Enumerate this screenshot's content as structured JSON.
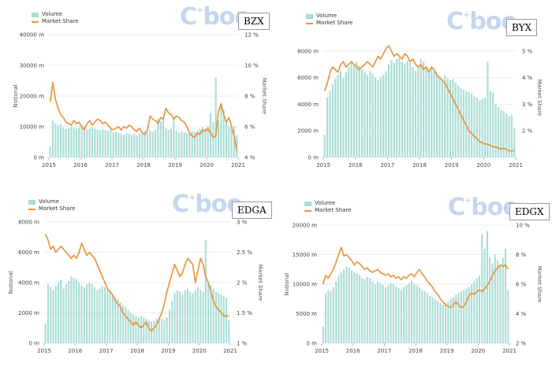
{
  "legend": {
    "volume": "Volume",
    "share": "Market Share"
  },
  "brand": {
    "logo_c": "C",
    "logo_rest": "boe",
    "logo_sup": "+"
  },
  "colors": {
    "bar": "#a8dcd5",
    "line": "#e8963f",
    "grid": "#e6e6e6",
    "logo": "#c5d6ef"
  },
  "chart_data": [
    {
      "type": "bar",
      "title": "BZX",
      "ylabel": "Notional",
      "y2label": "Market Share",
      "xlim": [
        2015,
        2021
      ],
      "ylim": [
        0,
        40000
      ],
      "y2lim": [
        4,
        12
      ],
      "yticks": [
        0,
        10000,
        20000,
        30000,
        40000
      ],
      "ytick_labels": [
        "0 m",
        "10000 m",
        "20000 m",
        "30000 m",
        "40000 m"
      ],
      "y2ticks": [
        4,
        6,
        8,
        10,
        12
      ],
      "y2tick_labels": [
        "4 %",
        "6 %",
        "8 %",
        "10 %",
        "12 %"
      ],
      "xticks": [
        2015,
        2016,
        2017,
        2018,
        2019,
        2020,
        2021
      ],
      "series": [
        {
          "name": "Volume",
          "kind": "bar",
          "axis": "left",
          "values": [
            3500,
            12000,
            11000,
            10500,
            10800,
            9800,
            9200,
            9500,
            10000,
            9600,
            9400,
            9800,
            10500,
            10200,
            9000,
            9300,
            9700,
            9400,
            9100,
            8800,
            9200,
            9000,
            8700,
            9400,
            8200,
            8400,
            8000,
            7800,
            7500,
            7900,
            7700,
            7400,
            7600,
            7300,
            7800,
            8100,
            8600,
            8200,
            8900,
            8400,
            9000,
            12500,
            11800,
            13000,
            9500,
            8900,
            9300,
            12800,
            8600,
            8000,
            8400,
            8200,
            7900,
            8100,
            8500,
            8300,
            8700,
            9200,
            9900,
            9500,
            10200,
            14500,
            11500,
            26000,
            12000,
            17000,
            15500,
            11500,
            10200,
            9800,
            10300,
            7200
          ]
        },
        {
          "name": "Market Share",
          "kind": "line",
          "axis": "right",
          "values": [
            7.6,
            8.9,
            7.8,
            7.2,
            6.8,
            6.6,
            6.3,
            6.2,
            6.1,
            6.4,
            6.2,
            6.3,
            6.0,
            5.8,
            6.2,
            6.4,
            6.1,
            6.3,
            6.5,
            6.4,
            6.2,
            6.3,
            6.1,
            5.9,
            5.8,
            5.9,
            6.0,
            5.8,
            6.0,
            5.9,
            6.1,
            6.0,
            5.8,
            5.7,
            5.9,
            5.6,
            5.5,
            5.8,
            6.7,
            6.5,
            6.4,
            6.2,
            6.6,
            6.5,
            7.2,
            6.9,
            6.8,
            6.5,
            6.7,
            6.6,
            6.4,
            6.3,
            6.0,
            5.6,
            5.4,
            5.3,
            5.6,
            5.5,
            5.8,
            5.7,
            5.9,
            5.6,
            5.3,
            5.4,
            7.0,
            7.5,
            6.8,
            6.3,
            6.6,
            6.0,
            5.4,
            4.4
          ]
        }
      ]
    },
    {
      "type": "bar",
      "title": "BYX",
      "ylabel": "",
      "y2label": "Market Share",
      "xlim": [
        2015,
        2021
      ],
      "ylim": [
        0,
        9000
      ],
      "y2lim": [
        1,
        5.5
      ],
      "yticks": [
        0,
        2000,
        4000,
        6000,
        8000
      ],
      "ytick_labels": [
        "0 m",
        "2000 m",
        "4000 m",
        "6000 m",
        "8000 m"
      ],
      "y2ticks": [
        2,
        3,
        4,
        5
      ],
      "y2tick_labels": [
        "2 %",
        "3 %",
        "4 %",
        "5 %"
      ],
      "xticks": [
        2015,
        2016,
        2017,
        2018,
        2019,
        2020,
        2021
      ],
      "series": [
        {
          "name": "Volume",
          "kind": "bar",
          "axis": "left",
          "values": [
            1700,
            4500,
            5000,
            5500,
            5900,
            6200,
            6500,
            6000,
            6400,
            6800,
            7100,
            7000,
            7200,
            6900,
            6600,
            6400,
            6200,
            6500,
            6300,
            6000,
            5800,
            6000,
            6200,
            6500,
            7000,
            7300,
            7100,
            7400,
            7500,
            7200,
            7000,
            7300,
            7100,
            6800,
            6500,
            6900,
            7400,
            7200,
            6900,
            6600,
            6800,
            6500,
            6300,
            6100,
            5900,
            6200,
            6000,
            5800,
            5900,
            5600,
            5400,
            5200,
            5100,
            5000,
            4900,
            4800,
            4600,
            4500,
            4300,
            4400,
            4500,
            7200,
            5000,
            4900,
            4000,
            3800,
            3600,
            3500,
            3300,
            3100,
            3200,
            2200
          ]
        },
        {
          "name": "Market Share",
          "kind": "line",
          "axis": "right",
          "values": [
            3.5,
            3.8,
            4.2,
            4.4,
            4.3,
            4.2,
            4.5,
            4.6,
            4.4,
            4.5,
            4.6,
            4.5,
            4.4,
            4.3,
            4.4,
            4.5,
            4.6,
            4.5,
            4.4,
            4.6,
            4.8,
            4.7,
            4.9,
            5.1,
            5.2,
            5.0,
            4.8,
            4.9,
            4.8,
            4.7,
            4.9,
            4.8,
            4.6,
            4.7,
            4.5,
            4.4,
            4.5,
            4.3,
            4.4,
            4.2,
            4.4,
            4.3,
            4.1,
            4.0,
            3.9,
            3.8,
            3.6,
            3.4,
            3.2,
            3.0,
            2.8,
            2.6,
            2.4,
            2.2,
            2.0,
            1.9,
            1.8,
            1.7,
            1.6,
            1.55,
            1.5,
            1.5,
            1.45,
            1.4,
            1.4,
            1.35,
            1.3,
            1.35,
            1.3,
            1.25,
            1.25,
            1.25
          ]
        }
      ]
    },
    {
      "type": "bar",
      "title": "EDGA",
      "ylabel": "Notional",
      "y2label": "Market Share",
      "xlim": [
        2015,
        2021
      ],
      "ylim": [
        0,
        8000
      ],
      "y2lim": [
        1,
        3
      ],
      "yticks": [
        0,
        2000,
        4000,
        6000,
        8000
      ],
      "ytick_labels": [
        "0 m",
        "2000 m",
        "4000 m",
        "6000 m",
        "8000 m"
      ],
      "y2ticks": [
        1,
        1.5,
        2,
        2.5,
        3
      ],
      "y2tick_labels": [
        "1 %",
        "1.5 %",
        "2 %",
        "2.5 %",
        "3 %"
      ],
      "xticks": [
        2015,
        2016,
        2017,
        2018,
        2019,
        2020,
        2021
      ],
      "series": [
        {
          "name": "Volume",
          "kind": "bar",
          "axis": "left",
          "values": [
            1300,
            3900,
            3700,
            3500,
            3800,
            4000,
            4200,
            3600,
            3900,
            4100,
            4400,
            4300,
            4200,
            4000,
            3800,
            3700,
            3900,
            4000,
            3900,
            3700,
            3500,
            3600,
            3800,
            3700,
            3500,
            3400,
            3200,
            3000,
            2900,
            2700,
            2500,
            2400,
            2200,
            2000,
            1900,
            1800,
            1700,
            1800,
            1700,
            1600,
            1500,
            1400,
            1500,
            1600,
            1700,
            1600,
            1500,
            1700,
            2200,
            2800,
            3300,
            3500,
            3400,
            3200,
            3500,
            3600,
            3400,
            3300,
            3500,
            3700,
            3500,
            3400,
            6800,
            4000,
            3800,
            3600,
            3400,
            3300,
            3200,
            3100,
            3000,
            1500
          ]
        },
        {
          "name": "Market Share",
          "kind": "line",
          "axis": "right",
          "values": [
            2.8,
            2.7,
            2.55,
            2.6,
            2.5,
            2.55,
            2.6,
            2.55,
            2.5,
            2.45,
            2.4,
            2.45,
            2.4,
            2.5,
            2.65,
            2.55,
            2.45,
            2.5,
            2.45,
            2.4,
            2.3,
            2.2,
            2.1,
            2.0,
            1.9,
            1.85,
            1.8,
            1.7,
            1.65,
            1.6,
            1.5,
            1.45,
            1.4,
            1.35,
            1.3,
            1.35,
            1.3,
            1.25,
            1.3,
            1.35,
            1.25,
            1.2,
            1.25,
            1.3,
            1.4,
            1.5,
            1.65,
            1.85,
            2.0,
            2.15,
            2.3,
            2.2,
            2.1,
            2.15,
            2.3,
            2.4,
            2.35,
            2.3,
            2.0,
            2.2,
            2.4,
            2.3,
            2.1,
            2.0,
            1.85,
            1.7,
            1.6,
            1.55,
            1.5,
            1.45,
            1.45,
            1.45
          ]
        }
      ]
    },
    {
      "type": "bar",
      "title": "EDGX",
      "ylabel": "Notional",
      "y2label": "Market Share",
      "xlim": [
        2015,
        2021
      ],
      "ylim": [
        0,
        20000
      ],
      "y2lim": [
        2,
        10
      ],
      "yticks": [
        0,
        5000,
        10000,
        15000,
        20000
      ],
      "ytick_labels": [
        "0 m",
        "5000 m",
        "10000 m",
        "15000 m",
        "20000 m"
      ],
      "y2ticks": [
        2,
        4,
        6,
        8,
        10
      ],
      "y2tick_labels": [
        "2 %",
        "4 %",
        "6 %",
        "8 %",
        "10 %"
      ],
      "xticks": [
        2015,
        2016,
        2017,
        2018,
        2019,
        2020,
        2021
      ],
      "series": [
        {
          "name": "Volume",
          "kind": "bar",
          "axis": "left",
          "values": [
            2800,
            8500,
            9000,
            8800,
            9500,
            10500,
            11500,
            12000,
            12500,
            13000,
            12800,
            12300,
            12000,
            11800,
            11500,
            11000,
            10800,
            11200,
            11000,
            10500,
            10000,
            10500,
            10200,
            9800,
            9500,
            9800,
            10200,
            10000,
            9600,
            9300,
            9000,
            9500,
            9800,
            10200,
            10500,
            10000,
            9800,
            9500,
            9000,
            8800,
            8500,
            8000,
            7800,
            7500,
            7200,
            6800,
            6500,
            6800,
            7000,
            7500,
            7800,
            8200,
            8500,
            8800,
            9000,
            9300,
            9500,
            10000,
            10500,
            11000,
            11500,
            18500,
            16000,
            19000,
            14500,
            13500,
            15000,
            14000,
            13000,
            14500,
            16000,
            9000
          ]
        },
        {
          "name": "Market Share",
          "kind": "line",
          "axis": "right",
          "values": [
            6.0,
            6.6,
            6.4,
            6.7,
            7.0,
            7.5,
            8.0,
            8.5,
            7.9,
            8.0,
            7.8,
            7.6,
            7.3,
            7.5,
            7.4,
            7.2,
            7.0,
            7.1,
            6.9,
            6.8,
            6.9,
            7.0,
            6.8,
            6.7,
            6.6,
            6.7,
            6.5,
            6.6,
            6.4,
            6.5,
            6.3,
            6.5,
            6.4,
            6.6,
            6.7,
            6.5,
            6.8,
            7.0,
            6.7,
            6.5,
            6.2,
            6.0,
            5.8,
            5.5,
            5.3,
            5.0,
            4.8,
            4.6,
            4.5,
            4.4,
            4.6,
            4.8,
            4.6,
            4.4,
            4.5,
            4.8,
            5.2,
            5.4,
            5.3,
            5.5,
            5.6,
            5.5,
            5.7,
            5.9,
            6.2,
            6.6,
            6.9,
            7.1,
            7.3,
            7.2,
            7.3,
            7.0
          ]
        }
      ]
    }
  ]
}
